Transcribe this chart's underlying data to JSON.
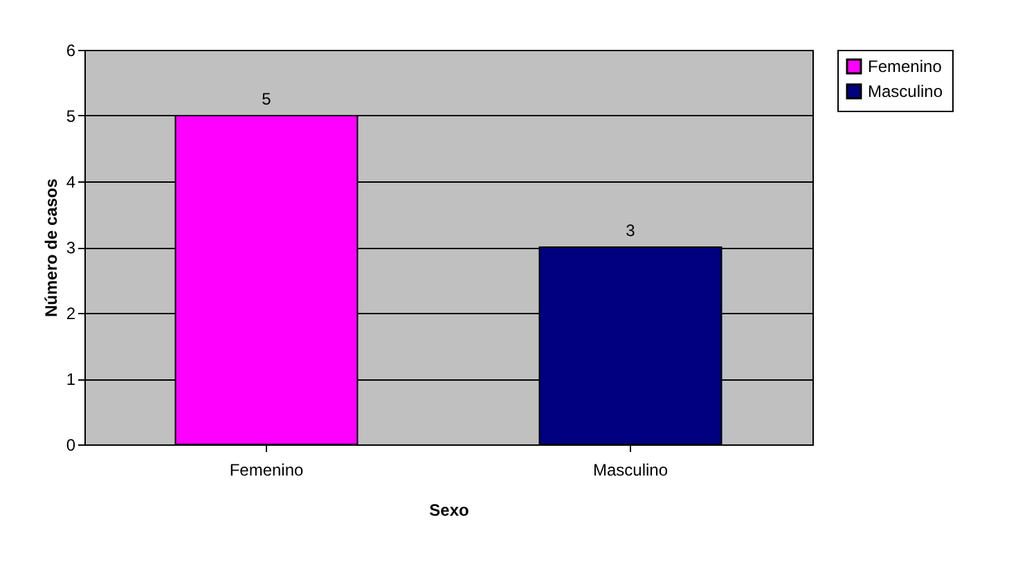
{
  "chart_data": {
    "type": "bar",
    "xlabel": "Sexo",
    "ylabel": "Número de casos",
    "categories": [
      "Femenino",
      "Masculino"
    ],
    "series": [
      {
        "name": "Femenino",
        "color": "#ff00ff",
        "values": [
          5,
          null
        ]
      },
      {
        "name": "Masculino",
        "color": "#000080",
        "values": [
          null,
          3
        ]
      }
    ],
    "ylim": [
      0,
      6
    ],
    "yticks": [
      0,
      1,
      2,
      3,
      4,
      5,
      6
    ],
    "grid": "y",
    "legend": "right",
    "data_labels": true
  }
}
